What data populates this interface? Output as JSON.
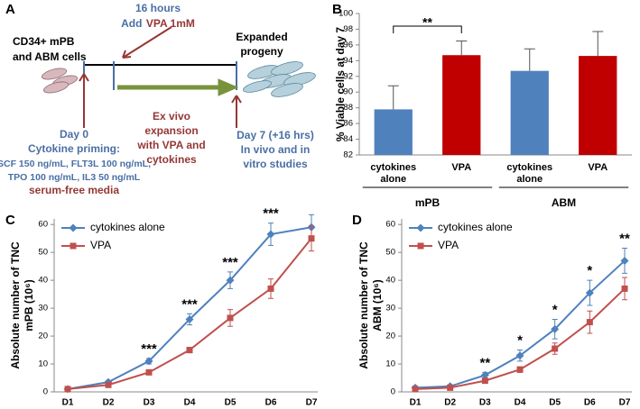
{
  "diagram": {
    "panel": "A",
    "source": [
      "CD34+ mPB",
      "and ABM cells"
    ],
    "timing": "16 hours",
    "treatment": [
      "Add",
      "VPA 1mM"
    ],
    "product": [
      "Expanded",
      "progeny"
    ],
    "process": [
      "Ex vivo",
      "expansion",
      "with VPA and",
      "cytokines"
    ],
    "day0": "Day 0",
    "priming": "Cytokine priming:",
    "cytokines": [
      "SCF 150 ng/mL, FLT3L 100 ng/mL,",
      "TPO 100 ng/mL, IL3 50 ng/mL"
    ],
    "media": "serum-free media",
    "day7": "Day 7 (+16 hrs)",
    "studies": [
      "In vivo and in",
      "vitro studies"
    ]
  },
  "chart_data": [
    {
      "type": "bar",
      "panel": "B",
      "ylabel": [
        "% Viable cells at day 7"
      ],
      "categories": [
        "cytokines alone",
        "VPA",
        "cytokines alone",
        "VPA"
      ],
      "groups": [
        "mPB",
        "ABM"
      ],
      "values": [
        87.8,
        94.7,
        92.7,
        94.6
      ],
      "errors": [
        3.0,
        1.8,
        2.8,
        3.1
      ],
      "colors": [
        "#4f81bd",
        "#c00000",
        "#4f81bd",
        "#c00000"
      ],
      "ylim": [
        82,
        100
      ],
      "yticks": [
        82,
        84,
        86,
        88,
        90,
        92,
        94,
        96,
        98,
        100
      ],
      "annotation": "**"
    },
    {
      "type": "line",
      "panel": "C",
      "ylabel": [
        "Absolute number of TNC",
        "mPB (10⁶)"
      ],
      "categories": [
        "D1",
        "D2",
        "D3",
        "D4",
        "D5",
        "D6",
        "D7"
      ],
      "series": [
        {
          "name": "cytokines alone",
          "color": "#4f81bd",
          "marker": "diamond",
          "values": [
            1,
            3.5,
            11,
            26,
            40,
            56.5,
            59
          ],
          "errors": [
            0.3,
            0.5,
            1,
            2,
            3,
            4,
            4.5
          ]
        },
        {
          "name": "VPA",
          "color": "#c0504d",
          "marker": "square",
          "values": [
            1,
            2.5,
            7,
            15,
            26.5,
            37,
            55
          ],
          "errors": [
            0.3,
            0.5,
            0.7,
            1,
            3,
            3.5,
            4.5
          ]
        }
      ],
      "ylim": [
        0,
        62
      ],
      "yticks": [
        0,
        10,
        20,
        30,
        40,
        50,
        60
      ],
      "significance": [
        null,
        null,
        "***",
        "***",
        "***",
        "***",
        null
      ],
      "legend": "upper left"
    },
    {
      "type": "line",
      "panel": "D",
      "ylabel": [
        "Absolute number of TNC",
        "ABM  (10⁶)"
      ],
      "categories": [
        "D1",
        "D2",
        "D3",
        "D4",
        "D5",
        "D6",
        "D7"
      ],
      "series": [
        {
          "name": "cytokines alone",
          "color": "#4f81bd",
          "marker": "diamond",
          "values": [
            1.5,
            2,
            6,
            13,
            22.5,
            35.5,
            47
          ],
          "errors": [
            0.5,
            0.5,
            1,
            2,
            3.5,
            4.5,
            4.5
          ]
        },
        {
          "name": "VPA",
          "color": "#c0504d",
          "marker": "square",
          "values": [
            1,
            1.5,
            4,
            8,
            15.5,
            25,
            37
          ],
          "errors": [
            0.3,
            0.5,
            0.7,
            1,
            2,
            4,
            4
          ]
        }
      ],
      "ylim": [
        0,
        62
      ],
      "yticks": [
        0,
        10,
        20,
        30,
        40,
        50,
        60
      ],
      "significance": [
        null,
        null,
        "**",
        "*",
        "*",
        "*",
        "**"
      ],
      "legend": "upper left"
    }
  ]
}
